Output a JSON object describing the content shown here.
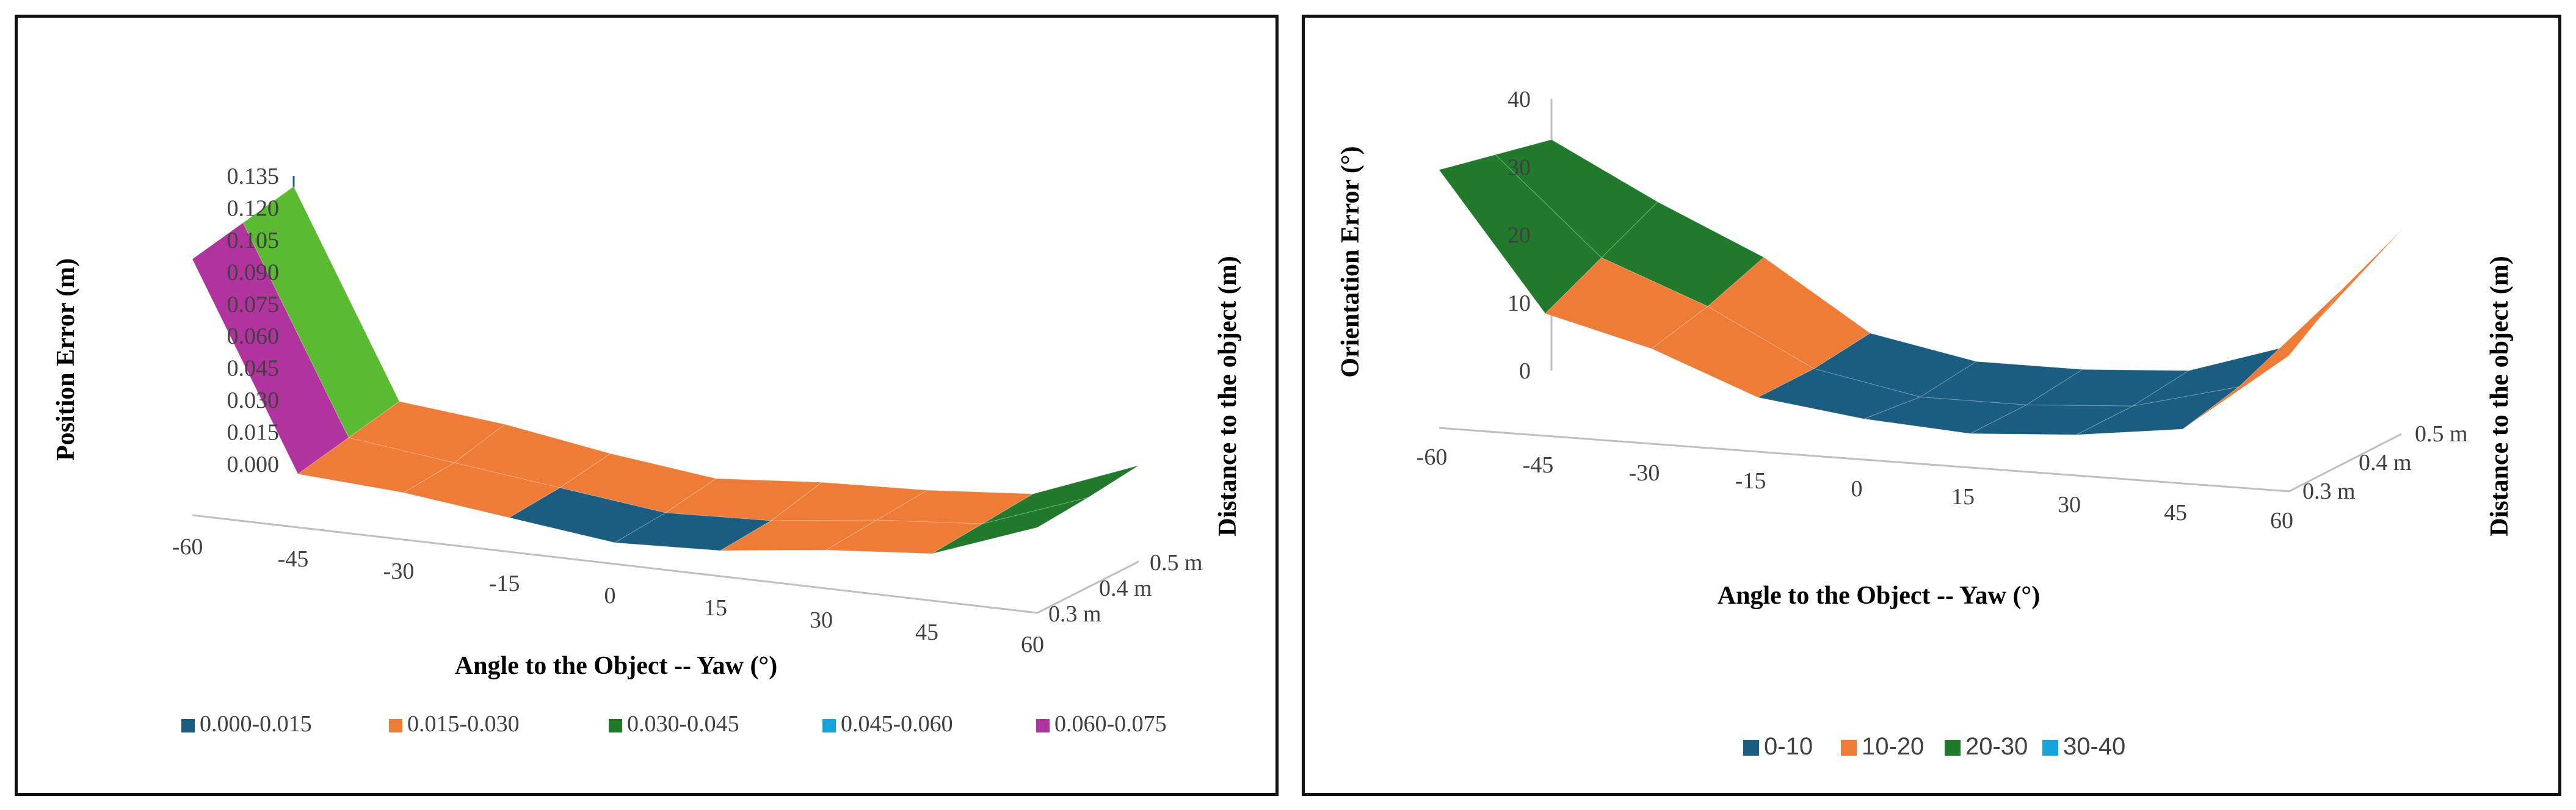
{
  "chart_data": [
    {
      "type": "surface3d",
      "title": "",
      "zlabel": "Position Error (m)",
      "xlabel": "Angle to the Object -- Yaw (°)",
      "ylabel": "Distance to the object (m)",
      "x_ticks": [
        "-60",
        "-45",
        "-30",
        "-15",
        "0",
        "15",
        "30",
        "45",
        "60"
      ],
      "y_ticks": [
        "0.3 m",
        "0.4 m",
        "0.5 m"
      ],
      "z_ticks": [
        "0.000",
        "0.015",
        "0.030",
        "0.045",
        "0.060",
        "0.075",
        "0.090",
        "0.105",
        "0.120",
        "0.135"
      ],
      "zlim": [
        0,
        0.135
      ],
      "legend": [
        "0.000-0.015",
        "0.015-0.030",
        "0.030-0.045",
        "0.045-0.060",
        "0.060-0.075"
      ],
      "band_colors": [
        "#1a5d80",
        "#ee7c36",
        "#217a2c",
        "#15a4de",
        "#b1339d",
        "#5aba32",
        "#113f56",
        "#c7561b"
      ],
      "x": [
        -60,
        -45,
        -30,
        -15,
        0,
        15,
        30,
        45,
        60
      ],
      "series": [
        {
          "name": "0.3 m",
          "values": [
            0.12,
            0.025,
            0.022,
            0.016,
            0.01,
            0.012,
            0.018,
            0.022,
            0.04
          ]
        },
        {
          "name": "0.4 m",
          "values": [
            0.125,
            0.03,
            0.024,
            0.018,
            0.012,
            0.014,
            0.02,
            0.024,
            0.042
          ]
        },
        {
          "name": "0.5 m",
          "values": [
            0.13,
            0.035,
            0.03,
            0.022,
            0.016,
            0.02,
            0.022,
            0.026,
            0.045
          ]
        }
      ]
    },
    {
      "type": "surface3d",
      "title": "",
      "zlabel": "Orientation Error (°)",
      "xlabel": "Angle to the Object -- Yaw (°)",
      "ylabel": "Distance to the object (m)",
      "x_ticks": [
        "-60",
        "-45",
        "-30",
        "-15",
        "0",
        "15",
        "30",
        "45",
        "60"
      ],
      "y_ticks": [
        "0.3 m",
        "0.4 m",
        "0.5 m"
      ],
      "z_ticks": [
        "0",
        "10",
        "20",
        "30",
        "40"
      ],
      "zlim": [
        0,
        40
      ],
      "legend": [
        "0-10",
        "10-20",
        "20-30",
        "30-40"
      ],
      "band_colors": [
        "#1a5d80",
        "#ee7c36",
        "#217a2c",
        "#15a4de"
      ],
      "x": [
        -60,
        -45,
        -30,
        -15,
        0,
        15,
        30,
        45,
        60
      ],
      "series": [
        {
          "name": "0.3 m",
          "values": [
            38,
            18,
            14,
            8,
            6,
            5,
            6,
            8,
            20
          ]
        },
        {
          "name": "0.4 m",
          "values": [
            36,
            22,
            16,
            8,
            5,
            5,
            6,
            10,
            26
          ]
        },
        {
          "name": "0.5 m",
          "values": [
            34,
            26,
            19,
            9,
            6,
            6,
            7,
            12,
            30
          ]
        }
      ]
    }
  ]
}
